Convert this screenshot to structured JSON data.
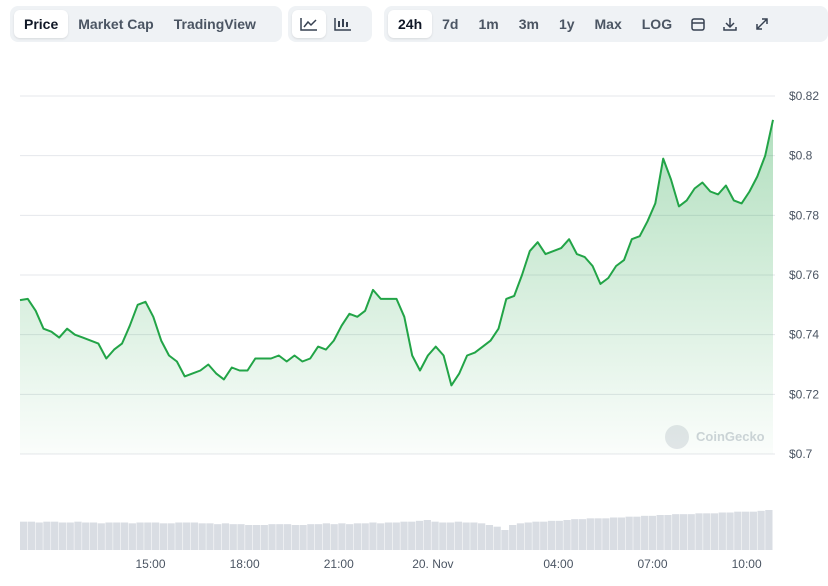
{
  "toolbar": {
    "views": [
      "Price",
      "Market Cap",
      "TradingView"
    ],
    "ranges": [
      "24h",
      "7d",
      "1m",
      "3m",
      "1y",
      "Max",
      "LOG"
    ]
  },
  "chart_data": {
    "type": "line",
    "color": "#22a447",
    "watermark": "CoinGecko",
    "categories": [
      null,
      null,
      null,
      null,
      null,
      null,
      null,
      null,
      null,
      null,
      null,
      null,
      null,
      null,
      null,
      null,
      "15:00",
      null,
      null,
      null,
      null,
      null,
      null,
      null,
      null,
      null,
      null,
      null,
      "18:00",
      null,
      null,
      null,
      null,
      null,
      null,
      null,
      null,
      null,
      null,
      null,
      "21:00",
      null,
      null,
      null,
      null,
      null,
      null,
      null,
      null,
      null,
      null,
      null,
      "20. Nov",
      null,
      null,
      null,
      null,
      null,
      null,
      null,
      null,
      null,
      null,
      null,
      null,
      null,
      null,
      null,
      "04:00",
      null,
      null,
      null,
      null,
      null,
      null,
      null,
      null,
      null,
      null,
      null,
      "07:00",
      null,
      null,
      null,
      null,
      null,
      null,
      null,
      null,
      null,
      null,
      null,
      "10:00",
      null,
      null,
      null,
      null
    ],
    "values": [
      0.7516,
      0.752,
      0.748,
      0.742,
      0.741,
      0.739,
      0.742,
      0.74,
      0.739,
      0.738,
      0.737,
      0.732,
      0.735,
      0.737,
      0.743,
      0.75,
      0.751,
      0.746,
      0.738,
      0.733,
      0.731,
      0.726,
      0.727,
      0.728,
      0.73,
      0.727,
      0.725,
      0.729,
      0.728,
      0.728,
      0.732,
      0.732,
      0.732,
      0.733,
      0.731,
      0.733,
      0.731,
      0.732,
      0.736,
      0.735,
      0.738,
      0.743,
      0.747,
      0.746,
      0.748,
      0.755,
      0.752,
      0.752,
      0.752,
      0.746,
      0.733,
      0.728,
      0.733,
      0.736,
      0.733,
      0.723,
      0.727,
      0.733,
      0.734,
      0.736,
      0.738,
      0.742,
      0.752,
      0.753,
      0.76,
      0.768,
      0.771,
      0.767,
      0.768,
      0.769,
      0.772,
      0.767,
      0.766,
      0.763,
      0.757,
      0.759,
      0.763,
      0.765,
      0.772,
      0.773,
      0.778,
      0.784,
      0.799,
      0.792,
      0.783,
      0.785,
      0.789,
      0.791,
      0.788,
      0.787,
      0.79,
      0.785,
      0.784,
      0.788,
      0.793,
      0.8,
      0.812
    ],
    "volume": {
      "color": "#d9dde3",
      "values": [
        34,
        34,
        33,
        34,
        34,
        33,
        33,
        34,
        33,
        33,
        32,
        33,
        33,
        33,
        32,
        33,
        33,
        33,
        32,
        32,
        33,
        33,
        33,
        32,
        32,
        31,
        32,
        31,
        31,
        30,
        30,
        30,
        31,
        31,
        31,
        30,
        30,
        31,
        31,
        32,
        31,
        32,
        31,
        32,
        32,
        33,
        32,
        33,
        33,
        34,
        34,
        35,
        36,
        34,
        33,
        33,
        34,
        33,
        33,
        32,
        30,
        28,
        24,
        30,
        32,
        33,
        34,
        34,
        35,
        35,
        36,
        37,
        37,
        38,
        38,
        38,
        39,
        39,
        40,
        40,
        41,
        41,
        42,
        42,
        43,
        43,
        43,
        44,
        44,
        44,
        45,
        45,
        46,
        46,
        46,
        47,
        48
      ]
    },
    "ylim": [
      0.7,
      0.82
    ],
    "yticks": [
      {
        "value": 0.7,
        "label": "$0.7"
      },
      {
        "value": 0.72,
        "label": "$0.72"
      },
      {
        "value": 0.74,
        "label": "$0.74"
      },
      {
        "value": 0.76,
        "label": "$0.76"
      },
      {
        "value": 0.78,
        "label": "$0.78"
      },
      {
        "value": 0.8,
        "label": "$0.8"
      },
      {
        "value": 0.82,
        "label": "$0.82"
      }
    ],
    "grid": true
  }
}
